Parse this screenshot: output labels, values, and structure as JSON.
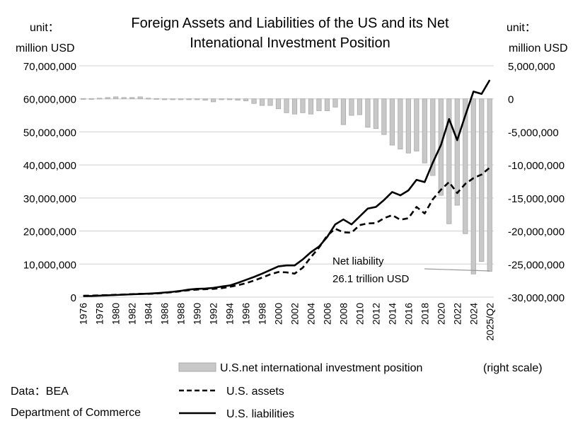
{
  "chart_data": {
    "type": "bar+line",
    "title_lines": [
      "Foreign Assets and Liabilities of the US and its Net",
      "Intenational Investment Position"
    ],
    "left_unit": [
      "unit：",
      "million USD"
    ],
    "right_unit": [
      "unit：",
      "million USD"
    ],
    "left_axis": {
      "range": [
        0,
        70000000
      ],
      "ticks": [
        "0",
        "10,000,000",
        "20,000,000",
        "30,000,000",
        "40,000,000",
        "50,000,000",
        "60,000,000",
        "70,000,000"
      ]
    },
    "right_axis": {
      "range": [
        -30000000,
        5000000
      ],
      "ticks": [
        "-30,000,000",
        "-25,000,000",
        "-20,000,000",
        "-15,000,000",
        "-10,000,000",
        "-5,000,000",
        "0",
        "5,000,000"
      ]
    },
    "grid": true,
    "categories": [
      "1976",
      "1977",
      "1978",
      "1979",
      "1980",
      "1981",
      "1982",
      "1983",
      "1984",
      "1985",
      "1986",
      "1987",
      "1988",
      "1989",
      "1990",
      "1991",
      "1992",
      "1993",
      "1994",
      "1995",
      "1996",
      "1997",
      "1998",
      "1999",
      "2000",
      "2001",
      "2002",
      "2003",
      "2004",
      "2005",
      "2006",
      "2007",
      "2008",
      "2009",
      "2010",
      "2011",
      "2012",
      "2013",
      "2014",
      "2015",
      "2016",
      "2017",
      "2018",
      "2019",
      "2020",
      "2021",
      "2022",
      "2023",
      "2024",
      "2025/Q1",
      "2025/Q2"
    ],
    "x_tick_labels": [
      "1976",
      "",
      "1978",
      "",
      "1980",
      "",
      "1982",
      "",
      "1984",
      "",
      "1986",
      "",
      "1988",
      "",
      "1990",
      "",
      "1992",
      "",
      "1994",
      "",
      "1996",
      "",
      "1998",
      "",
      "2000",
      "",
      "2002",
      "",
      "2004",
      "",
      "2006",
      "",
      "2008",
      "",
      "2010",
      "",
      "2012",
      "",
      "2014",
      "",
      "2016",
      "",
      "2018",
      "",
      "2020",
      "",
      "2022",
      "",
      "2024",
      "",
      "2025/Q2"
    ],
    "series": [
      {
        "name": "U.S.net international investment position",
        "axis": "right",
        "kind": "bar",
        "color": "#c8c8c8",
        "values": [
          50000,
          50000,
          100000,
          200000,
          300000,
          200000,
          200000,
          300000,
          100000,
          50000,
          0,
          -50000,
          -50000,
          -100000,
          -100000,
          -200000,
          -450000,
          -100000,
          -100000,
          -200000,
          -300000,
          -700000,
          -1000000,
          -1000000,
          -1500000,
          -2100000,
          -2300000,
          -2100000,
          -2300000,
          -1800000,
          -1800000,
          -1250000,
          -3900000,
          -2500000,
          -2400000,
          -4300000,
          -4500000,
          -5400000,
          -7000000,
          -7600000,
          -8200000,
          -7900000,
          -9700000,
          -11600000,
          -14600000,
          -18900000,
          -16100000,
          -20400000,
          -26500000,
          -24600000,
          -26100000
        ]
      },
      {
        "name": "U.S. assets",
        "axis": "left",
        "kind": "line",
        "style": "dashed",
        "color": "#000000",
        "values": [
          400000,
          450000,
          550000,
          600000,
          700000,
          800000,
          900000,
          1000000,
          1000000,
          1100000,
          1300000,
          1500000,
          1800000,
          2100000,
          2300000,
          2400000,
          2500000,
          2700000,
          3100000,
          3600000,
          4200000,
          5000000,
          5900000,
          6900000,
          7600000,
          7500000,
          7100000,
          8900000,
          12100000,
          15000000,
          18600000,
          20700000,
          19600000,
          19500000,
          21800000,
          22300000,
          22400000,
          23900000,
          24800000,
          23400000,
          23900000,
          27300000,
          25300000,
          29600000,
          32500000,
          34800000,
          31500000,
          34300000,
          36000000,
          37100000,
          39200000
        ]
      },
      {
        "name": "U.S. liabilities",
        "axis": "left",
        "kind": "line",
        "style": "solid",
        "color": "#000000",
        "values": [
          300000,
          350000,
          450000,
          550000,
          650000,
          750000,
          850000,
          950000,
          1050000,
          1200000,
          1400000,
          1600000,
          1900000,
          2300000,
          2500000,
          2600000,
          2800000,
          3200000,
          3500000,
          4300000,
          5200000,
          6100000,
          7100000,
          8200000,
          9300000,
          9600000,
          9600000,
          11400000,
          13600000,
          15300000,
          18200000,
          22000000,
          23500000,
          22000000,
          24400000,
          26800000,
          27300000,
          29400000,
          31800000,
          30800000,
          32300000,
          35500000,
          34800000,
          40700000,
          46000000,
          53900000,
          47500000,
          55000000,
          62200000,
          61500000,
          65700000
        ]
      }
    ],
    "annotation": [
      "Net liability",
      "26.1 trillion USD"
    ],
    "legend": {
      "bar_label": "U.S.net international investment position",
      "bar_note": "(right scale)",
      "assets_label": "U.S. assets",
      "liabilities_label": "U.S. liabilities",
      "placement": "bottom"
    },
    "source": [
      "Data：BEA",
      "Department of Commerce"
    ]
  }
}
